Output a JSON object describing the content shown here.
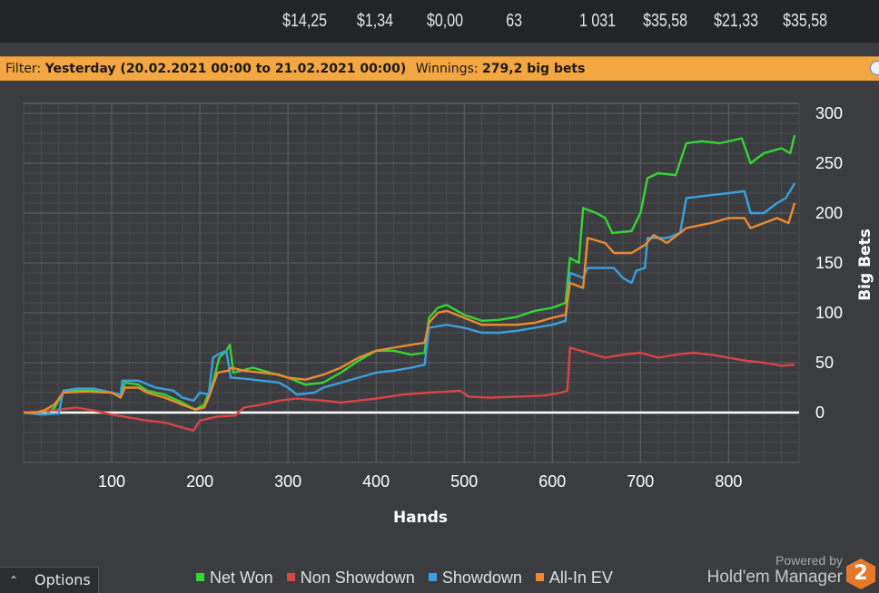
{
  "top_stats": [
    "$14,25",
    "$1,34",
    "$0,00",
    "63",
    "1 031",
    "$35,58",
    "$21,33",
    "$35,58"
  ],
  "filter": {
    "filter_label": "Filter:",
    "filter_value": "Yesterday (20.02.2021 00:00 to 21.02.2021 00:00)",
    "winnings_label": "Winnings:",
    "winnings_value": "279,2 big bets"
  },
  "options_label": "Options",
  "branding": {
    "powered": "Powered by",
    "name": "Hold'em Manager",
    "logo_text": "2"
  },
  "colors": {
    "net_won": "#33d633",
    "non_showdown": "#d94444",
    "showdown": "#3aa0e0",
    "allin_ev": "#ee8a30",
    "zero_line": "#ffffff"
  },
  "chart_data": {
    "type": "line",
    "title": "",
    "xlabel": "Hands",
    "ylabel": "Big Bets",
    "xlim": [
      0,
      880
    ],
    "ylim": [
      -50,
      310
    ],
    "x_ticks": [
      100,
      200,
      300,
      400,
      500,
      600,
      700,
      800
    ],
    "y_ticks": [
      0,
      50,
      100,
      150,
      200,
      250,
      300
    ],
    "grid": true,
    "legend_position": "bottom",
    "series": [
      {
        "name": "Net Won",
        "color": "#33d633",
        "points": [
          [
            0,
            0
          ],
          [
            15,
            0
          ],
          [
            25,
            -2
          ],
          [
            35,
            5
          ],
          [
            45,
            20
          ],
          [
            60,
            22
          ],
          [
            80,
            22
          ],
          [
            100,
            20
          ],
          [
            110,
            18
          ],
          [
            115,
            30
          ],
          [
            130,
            28
          ],
          [
            140,
            22
          ],
          [
            160,
            18
          ],
          [
            180,
            10
          ],
          [
            195,
            3
          ],
          [
            205,
            8
          ],
          [
            210,
            20
          ],
          [
            215,
            30
          ],
          [
            222,
            55
          ],
          [
            230,
            62
          ],
          [
            234,
            68
          ],
          [
            238,
            40
          ],
          [
            260,
            45
          ],
          [
            280,
            40
          ],
          [
            300,
            35
          ],
          [
            320,
            28
          ],
          [
            340,
            30
          ],
          [
            360,
            40
          ],
          [
            380,
            52
          ],
          [
            400,
            62
          ],
          [
            420,
            62
          ],
          [
            440,
            58
          ],
          [
            455,
            60
          ],
          [
            460,
            95
          ],
          [
            470,
            105
          ],
          [
            480,
            108
          ],
          [
            500,
            98
          ],
          [
            520,
            92
          ],
          [
            540,
            93
          ],
          [
            560,
            96
          ],
          [
            580,
            102
          ],
          [
            600,
            105
          ],
          [
            615,
            110
          ],
          [
            620,
            155
          ],
          [
            630,
            150
          ],
          [
            635,
            205
          ],
          [
            650,
            200
          ],
          [
            660,
            195
          ],
          [
            668,
            180
          ],
          [
            690,
            182
          ],
          [
            700,
            200
          ],
          [
            708,
            235
          ],
          [
            720,
            240
          ],
          [
            740,
            238
          ],
          [
            752,
            270
          ],
          [
            770,
            272
          ],
          [
            790,
            270
          ],
          [
            815,
            275
          ],
          [
            825,
            250
          ],
          [
            840,
            260
          ],
          [
            860,
            265
          ],
          [
            870,
            260
          ],
          [
            875,
            278
          ]
        ]
      },
      {
        "name": "Non Showdown",
        "color": "#d94444",
        "points": [
          [
            0,
            0
          ],
          [
            30,
            2
          ],
          [
            60,
            5
          ],
          [
            80,
            2
          ],
          [
            100,
            -2
          ],
          [
            120,
            -5
          ],
          [
            140,
            -8
          ],
          [
            160,
            -10
          ],
          [
            180,
            -15
          ],
          [
            193,
            -18
          ],
          [
            200,
            -8
          ],
          [
            220,
            -4
          ],
          [
            240,
            -3
          ],
          [
            250,
            5
          ],
          [
            270,
            8
          ],
          [
            290,
            12
          ],
          [
            310,
            14
          ],
          [
            340,
            12
          ],
          [
            360,
            10
          ],
          [
            380,
            12
          ],
          [
            400,
            14
          ],
          [
            430,
            18
          ],
          [
            460,
            20
          ],
          [
            480,
            21
          ],
          [
            495,
            22
          ],
          [
            505,
            16
          ],
          [
            530,
            15
          ],
          [
            560,
            16
          ],
          [
            590,
            17
          ],
          [
            610,
            20
          ],
          [
            617,
            22
          ],
          [
            620,
            65
          ],
          [
            640,
            60
          ],
          [
            660,
            55
          ],
          [
            680,
            58
          ],
          [
            700,
            60
          ],
          [
            720,
            55
          ],
          [
            740,
            58
          ],
          [
            760,
            60
          ],
          [
            780,
            58
          ],
          [
            800,
            55
          ],
          [
            820,
            52
          ],
          [
            840,
            50
          ],
          [
            860,
            47
          ],
          [
            875,
            48
          ]
        ]
      },
      {
        "name": "Showdown",
        "color": "#3aa0e0",
        "points": [
          [
            0,
            0
          ],
          [
            20,
            -2
          ],
          [
            40,
            -1
          ],
          [
            45,
            22
          ],
          [
            60,
            24
          ],
          [
            80,
            24
          ],
          [
            100,
            20
          ],
          [
            110,
            18
          ],
          [
            112,
            32
          ],
          [
            130,
            32
          ],
          [
            150,
            25
          ],
          [
            170,
            22
          ],
          [
            180,
            15
          ],
          [
            193,
            12
          ],
          [
            200,
            20
          ],
          [
            210,
            18
          ],
          [
            215,
            55
          ],
          [
            220,
            58
          ],
          [
            230,
            62
          ],
          [
            235,
            35
          ],
          [
            250,
            34
          ],
          [
            270,
            32
          ],
          [
            290,
            30
          ],
          [
            300,
            25
          ],
          [
            310,
            18
          ],
          [
            330,
            20
          ],
          [
            340,
            25
          ],
          [
            360,
            30
          ],
          [
            380,
            35
          ],
          [
            400,
            40
          ],
          [
            420,
            42
          ],
          [
            440,
            45
          ],
          [
            455,
            48
          ],
          [
            460,
            85
          ],
          [
            480,
            88
          ],
          [
            500,
            85
          ],
          [
            520,
            80
          ],
          [
            540,
            80
          ],
          [
            560,
            82
          ],
          [
            580,
            85
          ],
          [
            600,
            88
          ],
          [
            615,
            92
          ],
          [
            620,
            140
          ],
          [
            635,
            135
          ],
          [
            640,
            145
          ],
          [
            670,
            145
          ],
          [
            680,
            135
          ],
          [
            690,
            130
          ],
          [
            695,
            142
          ],
          [
            705,
            145
          ],
          [
            708,
            175
          ],
          [
            730,
            175
          ],
          [
            745,
            180
          ],
          [
            752,
            215
          ],
          [
            780,
            218
          ],
          [
            800,
            220
          ],
          [
            818,
            222
          ],
          [
            825,
            200
          ],
          [
            840,
            200
          ],
          [
            855,
            210
          ],
          [
            865,
            215
          ],
          [
            875,
            230
          ]
        ]
      },
      {
        "name": "All-In EV",
        "color": "#ee8a30",
        "points": [
          [
            0,
            0
          ],
          [
            15,
            0
          ],
          [
            25,
            3
          ],
          [
            35,
            8
          ],
          [
            45,
            20
          ],
          [
            70,
            21
          ],
          [
            100,
            20
          ],
          [
            110,
            15
          ],
          [
            115,
            25
          ],
          [
            130,
            25
          ],
          [
            140,
            20
          ],
          [
            160,
            15
          ],
          [
            180,
            8
          ],
          [
            195,
            3
          ],
          [
            205,
            5
          ],
          [
            210,
            15
          ],
          [
            220,
            40
          ],
          [
            232,
            42
          ],
          [
            236,
            45
          ],
          [
            250,
            42
          ],
          [
            270,
            40
          ],
          [
            290,
            38
          ],
          [
            300,
            35
          ],
          [
            320,
            33
          ],
          [
            340,
            38
          ],
          [
            360,
            45
          ],
          [
            380,
            55
          ],
          [
            400,
            62
          ],
          [
            420,
            65
          ],
          [
            440,
            68
          ],
          [
            455,
            70
          ],
          [
            460,
            90
          ],
          [
            470,
            100
          ],
          [
            480,
            102
          ],
          [
            500,
            95
          ],
          [
            520,
            88
          ],
          [
            540,
            88
          ],
          [
            560,
            88
          ],
          [
            580,
            90
          ],
          [
            600,
            95
          ],
          [
            615,
            98
          ],
          [
            620,
            130
          ],
          [
            635,
            125
          ],
          [
            640,
            175
          ],
          [
            660,
            170
          ],
          [
            670,
            160
          ],
          [
            690,
            160
          ],
          [
            705,
            168
          ],
          [
            715,
            178
          ],
          [
            730,
            170
          ],
          [
            752,
            185
          ],
          [
            780,
            190
          ],
          [
            800,
            195
          ],
          [
            818,
            195
          ],
          [
            825,
            185
          ],
          [
            840,
            190
          ],
          [
            855,
            195
          ],
          [
            868,
            190
          ],
          [
            875,
            210
          ]
        ]
      }
    ]
  }
}
